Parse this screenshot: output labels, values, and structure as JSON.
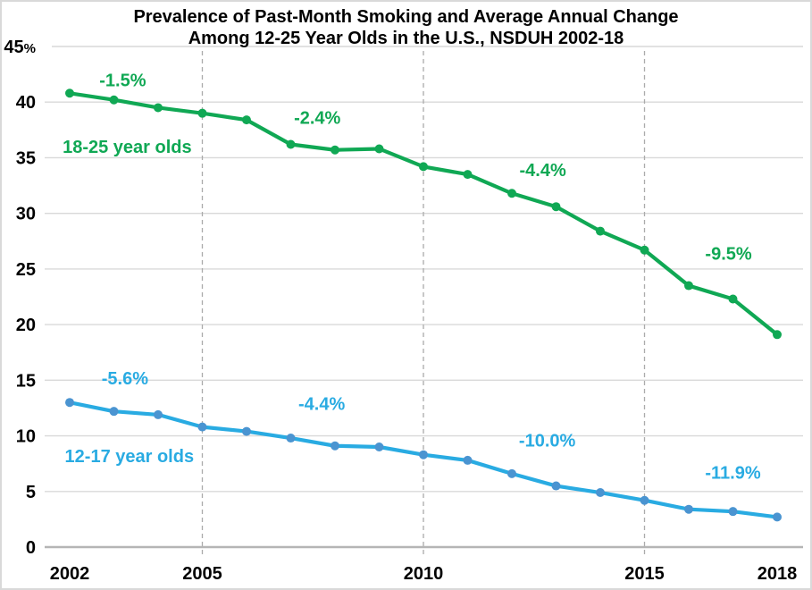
{
  "title": {
    "line1": "Prevalence of Past-Month Smoking and Average Annual Change",
    "line2": "Among 12-25 Year Olds in the U.S., NSDUH 2002-18"
  },
  "chart_data": {
    "type": "line",
    "title": "Prevalence of Past-Month Smoking and Average Annual Change Among 12-25 Year Olds in the U.S., NSDUH 2002-18",
    "x": [
      2002,
      2003,
      2004,
      2005,
      2006,
      2007,
      2008,
      2009,
      2010,
      2011,
      2012,
      2013,
      2014,
      2015,
      2016,
      2017,
      2018
    ],
    "ylim": [
      0,
      45
    ],
    "y_ticks": [
      0,
      5,
      10,
      15,
      20,
      25,
      30,
      35,
      40,
      45
    ],
    "y_unit_suffix_on_top_tick": "%",
    "x_tick_years": [
      2002,
      2005,
      2010,
      2015,
      2018
    ],
    "dashed_gridline_years": [
      2005,
      2010,
      2015
    ],
    "grid_on": true,
    "grid_color": "#d9d9d9",
    "dashed_grid_color": "#ababab",
    "axis_color": "#b5b5b5",
    "series": [
      {
        "name": "18-25 year olds",
        "color": "#10a854",
        "marker_color": "#10a854",
        "values": [
          40.8,
          40.2,
          39.5,
          39.0,
          38.4,
          36.2,
          35.7,
          35.8,
          34.2,
          33.5,
          31.8,
          30.6,
          28.4,
          26.7,
          23.5,
          22.3,
          19.1
        ],
        "label": {
          "text": "18-25 year olds",
          "x_year": 2003.3,
          "y_value": 36.0
        }
      },
      {
        "name": "12-17 year olds",
        "color": "#29abe2",
        "marker_color": "#4a94d1",
        "values": [
          13.0,
          12.2,
          11.9,
          10.8,
          10.4,
          9.8,
          9.1,
          9.0,
          8.3,
          7.8,
          6.6,
          5.5,
          4.9,
          4.2,
          3.4,
          3.2,
          2.7
        ],
        "label": {
          "text": "12-17 year olds",
          "x_year": 2003.35,
          "y_value": 8.2
        }
      }
    ],
    "annotations": [
      {
        "text": "-1.5%",
        "color": "#10a854",
        "x_year": 2003.2,
        "y_value": 42.0
      },
      {
        "text": "-2.4%",
        "color": "#10a854",
        "x_year": 2007.6,
        "y_value": 38.6
      },
      {
        "text": "-4.4%",
        "color": "#10a854",
        "x_year": 2012.7,
        "y_value": 33.9
      },
      {
        "text": "-9.5%",
        "color": "#10a854",
        "x_year": 2016.9,
        "y_value": 26.4
      },
      {
        "text": "-5.6%",
        "color": "#29abe2",
        "x_year": 2003.25,
        "y_value": 15.2
      },
      {
        "text": "-4.4%",
        "color": "#29abe2",
        "x_year": 2007.7,
        "y_value": 12.9
      },
      {
        "text": "-10.0%",
        "color": "#29abe2",
        "x_year": 2012.8,
        "y_value": 9.6
      },
      {
        "text": "-11.9%",
        "color": "#29abe2",
        "x_year": 2017.0,
        "y_value": 6.7
      }
    ]
  }
}
